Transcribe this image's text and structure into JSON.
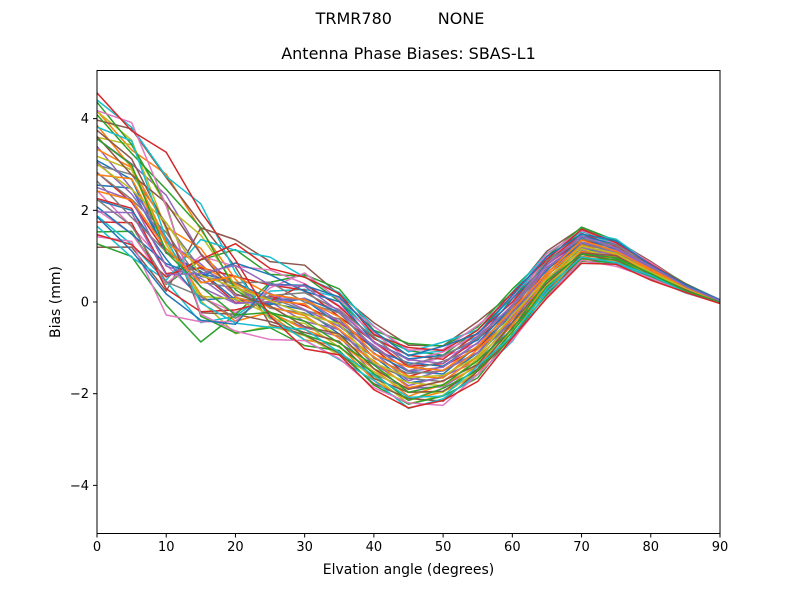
{
  "figure": {
    "suptitle": "TRMR780         NONE",
    "background_color": "#ffffff",
    "text_color": "#000000"
  },
  "chart_data": {
    "type": "line",
    "title": "Antenna Phase Biases: SBAS-L1",
    "xlabel": "Elvation angle (degrees)",
    "ylabel": "Bias (mm)",
    "xlim": [
      0,
      90
    ],
    "ylim": [
      -5.05,
      5.05
    ],
    "grid": false,
    "legend": "none",
    "x_ticks": [
      0,
      10,
      20,
      30,
      40,
      50,
      60,
      70,
      80,
      90
    ],
    "x_tick_labels": [
      "0",
      "10",
      "20",
      "30",
      "40",
      "50",
      "60",
      "70",
      "80",
      "90"
    ],
    "y_ticks": [
      -4,
      -2,
      0,
      2,
      4
    ],
    "y_tick_labels": [
      "−4",
      "−2",
      "0",
      "2",
      "4"
    ],
    "x": [
      0,
      5,
      10,
      15,
      20,
      25,
      30,
      35,
      40,
      45,
      50,
      55,
      60,
      65,
      70,
      75,
      80,
      85,
      90
    ],
    "ensemble": {
      "description": "Band of ~45 antenna phase bias curves, one per satellite/channel; values in mm read from the plot envelopes.",
      "center": [
        2.88,
        2.43,
        1.38,
        0.68,
        0.28,
        0.1,
        -0.13,
        -0.5,
        -1.18,
        -1.63,
        -1.55,
        -1.08,
        -0.3,
        0.6,
        1.23,
        1.08,
        0.68,
        0.3,
        0.01
      ],
      "halfwidth": [
        1.58,
        1.48,
        1.68,
        1.48,
        1.13,
        0.85,
        0.83,
        0.75,
        0.68,
        0.68,
        0.65,
        0.58,
        0.55,
        0.48,
        0.38,
        0.28,
        0.18,
        0.1,
        0.04
      ],
      "envelope_top": [
        4.46,
        3.91,
        3.06,
        2.16,
        1.41,
        0.95,
        0.7,
        0.25,
        -0.5,
        -0.95,
        -0.9,
        -0.5,
        0.25,
        1.08,
        1.61,
        1.36,
        0.86,
        0.4,
        0.05
      ],
      "envelope_bottom": [
        1.3,
        0.95,
        -0.3,
        -0.8,
        -0.85,
        -0.75,
        -0.96,
        -1.25,
        -1.86,
        -2.31,
        -2.2,
        -1.66,
        -0.85,
        0.12,
        0.85,
        0.8,
        0.5,
        0.2,
        -0.03
      ],
      "series_count": 45,
      "t_values": [
        0.136,
        0.727,
        -0.727,
        -0.136,
        0.455,
        -1.0,
        -0.409,
        0.182,
        0.773,
        -0.682,
        -0.091,
        0.5,
        -0.955,
        -0.364,
        0.227,
        0.818,
        -0.636,
        -0.045,
        0.545,
        -0.909,
        -0.318,
        0.273,
        0.864,
        -0.591,
        0.0,
        0.591,
        -0.864,
        -0.273,
        0.318,
        0.909,
        -0.545,
        0.045,
        0.636,
        -0.818,
        -0.227,
        0.364,
        0.955,
        -0.5,
        0.091,
        0.682,
        -0.773,
        -0.182,
        0.409,
        1.0,
        -0.455
      ],
      "cross_x": [
        8.0,
        21.2,
        13.9,
        27.1,
        19.8,
        12.5,
        25.7,
        18.5,
        11.2,
        24.4,
        17.1,
        9.8,
        23.0,
        15.7,
        8.5,
        21.6,
        14.4,
        27.5,
        20.3,
        13.0,
        26.2,
        18.9,
        11.6,
        24.8,
        17.5,
        10.3,
        23.5,
        16.2,
        8.9,
        22.1,
        14.8,
        28.0,
        20.7,
        13.5,
        26.6,
        19.4,
        12.1,
        25.3,
        18.0,
        10.7,
        23.9,
        16.6,
        9.4,
        22.5,
        15.3
      ],
      "transition_width_deg": 4,
      "jitter_amp": 0.13,
      "jitter_freq": 0.5
    },
    "colors": [
      "#1f77b4",
      "#ff7f0e",
      "#2ca02c",
      "#d62728",
      "#9467bd",
      "#8c564b",
      "#e377c2",
      "#7f7f7f",
      "#bcbd22",
      "#17becf"
    ],
    "line_width": 1.5,
    "spine_color": "#000000"
  }
}
